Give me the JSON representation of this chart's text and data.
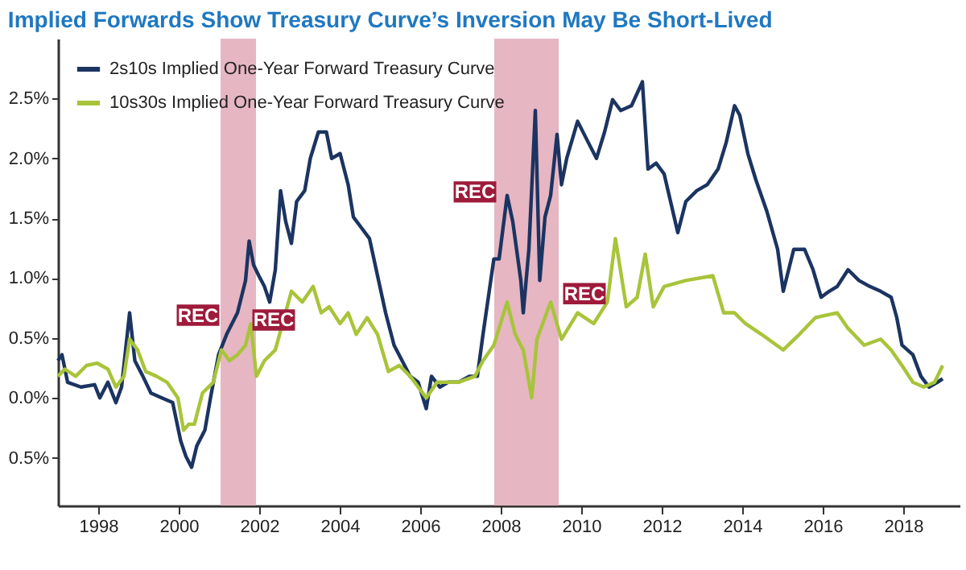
{
  "chart_data": {
    "type": "line",
    "title": "Implied Forwards Show Treasury Curve’s Inversion May Be Short-Lived",
    "series": [
      {
        "name": "2s10s Implied One-Year Forward Treasury Curve",
        "color": "#1b3461",
        "x": [
          1997.0,
          1997.1,
          1997.24,
          1997.57,
          1997.91,
          1998.04,
          1998.24,
          1998.44,
          1998.58,
          1998.78,
          1998.91,
          1999.11,
          1999.31,
          1999.58,
          1999.85,
          2000.05,
          2000.18,
          2000.32,
          2000.45,
          2000.65,
          2000.79,
          2000.99,
          2001.19,
          2001.46,
          2001.66,
          2001.75,
          2001.86,
          2001.99,
          2002.13,
          2002.26,
          2002.4,
          2002.53,
          2002.66,
          2002.8,
          2002.93,
          2003.13,
          2003.27,
          2003.47,
          2003.67,
          2003.8,
          2004.01,
          2004.21,
          2004.34,
          2004.54,
          2004.74,
          2004.94,
          2005.14,
          2005.35,
          2005.55,
          2005.75,
          2005.95,
          2006.15,
          2006.28,
          2006.49,
          2006.69,
          2006.95,
          2007.22,
          2007.42,
          2007.56,
          2007.83,
          2007.96,
          2008.16,
          2008.3,
          2008.5,
          2008.56,
          2008.7,
          2008.86,
          2008.97,
          2009.1,
          2009.24,
          2009.4,
          2009.51,
          2009.64,
          2009.91,
          2010.18,
          2010.38,
          2010.58,
          2010.78,
          2010.98,
          2011.25,
          2011.52,
          2011.66,
          2011.86,
          2012.06,
          2012.4,
          2012.6,
          2012.87,
          2013.13,
          2013.4,
          2013.6,
          2013.81,
          2013.94,
          2014.14,
          2014.34,
          2014.61,
          2014.88,
          2015.02,
          2015.28,
          2015.55,
          2015.76,
          2015.96,
          2016.16,
          2016.36,
          2016.63,
          2016.9,
          2017.17,
          2017.44,
          2017.7,
          2017.84,
          2017.97,
          2018.24,
          2018.44,
          2018.64,
          2018.85,
          2018.98
        ],
        "values": [
          0.31,
          0.36,
          0.13,
          0.09,
          0.11,
          0.0,
          0.13,
          -0.04,
          0.09,
          0.71,
          0.31,
          0.18,
          0.04,
          0.0,
          -0.04,
          -0.36,
          -0.49,
          -0.58,
          -0.4,
          -0.27,
          0.0,
          0.36,
          0.53,
          0.71,
          0.98,
          1.31,
          1.11,
          1.02,
          0.93,
          0.8,
          1.07,
          1.73,
          1.47,
          1.29,
          1.64,
          1.73,
          2.0,
          2.22,
          2.22,
          2.0,
          2.04,
          1.78,
          1.51,
          1.42,
          1.33,
          1.02,
          0.71,
          0.44,
          0.31,
          0.18,
          0.13,
          -0.09,
          0.18,
          0.09,
          0.13,
          0.13,
          0.18,
          0.18,
          0.53,
          1.16,
          1.16,
          1.69,
          1.47,
          0.98,
          0.71,
          1.24,
          2.4,
          0.98,
          1.51,
          1.69,
          2.2,
          1.78,
          2.0,
          2.31,
          2.13,
          2.0,
          2.22,
          2.49,
          2.4,
          2.44,
          2.64,
          1.91,
          1.96,
          1.87,
          1.38,
          1.64,
          1.73,
          1.78,
          1.91,
          2.13,
          2.44,
          2.36,
          2.04,
          1.82,
          1.56,
          1.24,
          0.89,
          1.24,
          1.24,
          1.07,
          0.84,
          0.89,
          0.93,
          1.07,
          0.98,
          0.93,
          0.89,
          0.84,
          0.67,
          0.44,
          0.36,
          0.18,
          0.09,
          0.13,
          0.16
        ]
      },
      {
        "name": "10s30s Implied One-Year Forward Treasury Curve",
        "color": "#a8c43a",
        "x": [
          1997.0,
          1997.17,
          1997.44,
          1997.71,
          1997.97,
          1998.24,
          1998.44,
          1998.64,
          1998.78,
          1998.98,
          1999.18,
          1999.45,
          1999.71,
          1999.98,
          2000.12,
          2000.25,
          2000.39,
          2000.59,
          2000.86,
          2001.06,
          2001.26,
          2001.46,
          2001.66,
          2001.79,
          2001.93,
          2002.13,
          2002.4,
          2002.8,
          2003.07,
          2003.34,
          2003.54,
          2003.74,
          2004.01,
          2004.21,
          2004.41,
          2004.68,
          2004.94,
          2005.21,
          2005.48,
          2005.75,
          2006.15,
          2006.42,
          2006.69,
          2006.95,
          2007.36,
          2007.56,
          2007.83,
          2008.16,
          2008.36,
          2008.56,
          2008.77,
          2008.9,
          2009.24,
          2009.51,
          2009.91,
          2010.31,
          2010.65,
          2010.85,
          2011.12,
          2011.39,
          2011.59,
          2011.79,
          2012.06,
          2012.6,
          2013.27,
          2013.54,
          2013.81,
          2014.08,
          2014.48,
          2015.02,
          2015.42,
          2015.82,
          2016.36,
          2016.63,
          2017.03,
          2017.44,
          2017.7,
          2017.97,
          2018.24,
          2018.51,
          2018.78,
          2018.98
        ],
        "values": [
          0.18,
          0.24,
          0.18,
          0.27,
          0.29,
          0.24,
          0.09,
          0.18,
          0.49,
          0.4,
          0.22,
          0.18,
          0.13,
          0.0,
          -0.27,
          -0.22,
          -0.22,
          0.04,
          0.13,
          0.4,
          0.31,
          0.36,
          0.44,
          0.62,
          0.18,
          0.31,
          0.4,
          0.89,
          0.8,
          0.93,
          0.71,
          0.76,
          0.62,
          0.71,
          0.53,
          0.67,
          0.53,
          0.22,
          0.27,
          0.18,
          0.0,
          0.13,
          0.13,
          0.13,
          0.18,
          0.31,
          0.44,
          0.8,
          0.53,
          0.4,
          0.0,
          0.49,
          0.8,
          0.49,
          0.71,
          0.62,
          0.8,
          1.33,
          0.76,
          0.84,
          1.2,
          0.76,
          0.93,
          0.98,
          1.02,
          0.71,
          0.71,
          0.62,
          0.53,
          0.4,
          0.53,
          0.67,
          0.71,
          0.58,
          0.44,
          0.49,
          0.4,
          0.27,
          0.13,
          0.09,
          0.13,
          0.27
        ]
      }
    ],
    "xlim": [
      1997.0,
      2019.4
    ],
    "xticks": [
      1998,
      2000,
      2002,
      2004,
      2006,
      2008,
      2010,
      2012,
      2014,
      2016,
      2018
    ],
    "ylim": [
      -0.9,
      3.0
    ],
    "yticks": [
      {
        "value": -0.5,
        "label": "0.5%"
      },
      {
        "value": 0,
        "label": "0.0%"
      },
      {
        "value": 0.5,
        "label": "0.5%"
      },
      {
        "value": 1.0,
        "label": "1.0%"
      },
      {
        "value": 1.5,
        "label": "1.5%"
      },
      {
        "value": 2.0,
        "label": "2.0%"
      },
      {
        "value": 2.5,
        "label": "2.5%"
      }
    ],
    "bands": [
      {
        "axis": "x",
        "from": 2001.04,
        "to": 2001.92,
        "color": "#e3aebd"
      },
      {
        "axis": "x",
        "from": 2007.84,
        "to": 2009.44,
        "color": "#e3aebd"
      }
    ],
    "annotations": [
      {
        "text": "REC",
        "x": 2000.48,
        "y": 0.69
      },
      {
        "text": "REC",
        "x": 2002.36,
        "y": 0.65
      },
      {
        "text": "REC",
        "x": 2007.36,
        "y": 1.72
      },
      {
        "text": "REC",
        "x": 2010.08,
        "y": 0.87
      }
    ],
    "grid": false,
    "legend": "top left",
    "line_style": "solid",
    "marker": "none"
  }
}
